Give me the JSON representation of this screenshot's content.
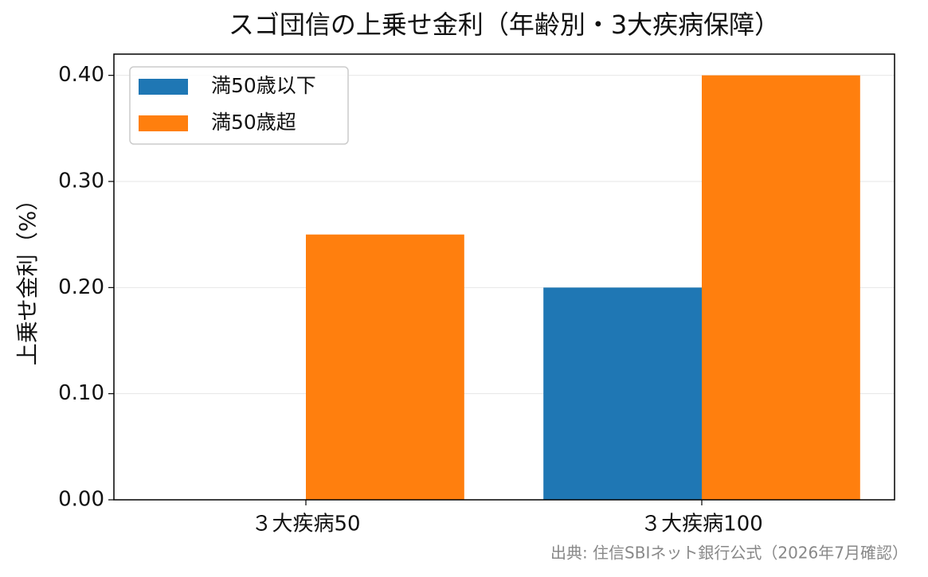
{
  "chart_data": {
    "type": "bar",
    "title": "スゴ団信の上乗せ金利（年齢別・3大疾病保障）",
    "ylabel": "上乗せ金利（%）",
    "source": "出典: 住信SBIネット銀行公式（2026年7月確認）",
    "categories": [
      "３大疾病50",
      "３大疾病100"
    ],
    "series": [
      {
        "name": "満50歳以下",
        "color": "#1f77b4",
        "values": [
          0,
          0.2
        ]
      },
      {
        "name": "満50歳超",
        "color": "#ff7f0e",
        "values": [
          0.25,
          0.4
        ]
      }
    ],
    "ylim": [
      0,
      0.42
    ],
    "yticks": [
      {
        "value": 0,
        "label": "0.00"
      },
      {
        "value": 0.1,
        "label": "0.10"
      },
      {
        "value": 0.2,
        "label": "0.20"
      },
      {
        "value": 0.3,
        "label": "0.30"
      },
      {
        "value": 0.4,
        "label": "0.40"
      }
    ],
    "grid": true,
    "legend": "upper-left"
  }
}
